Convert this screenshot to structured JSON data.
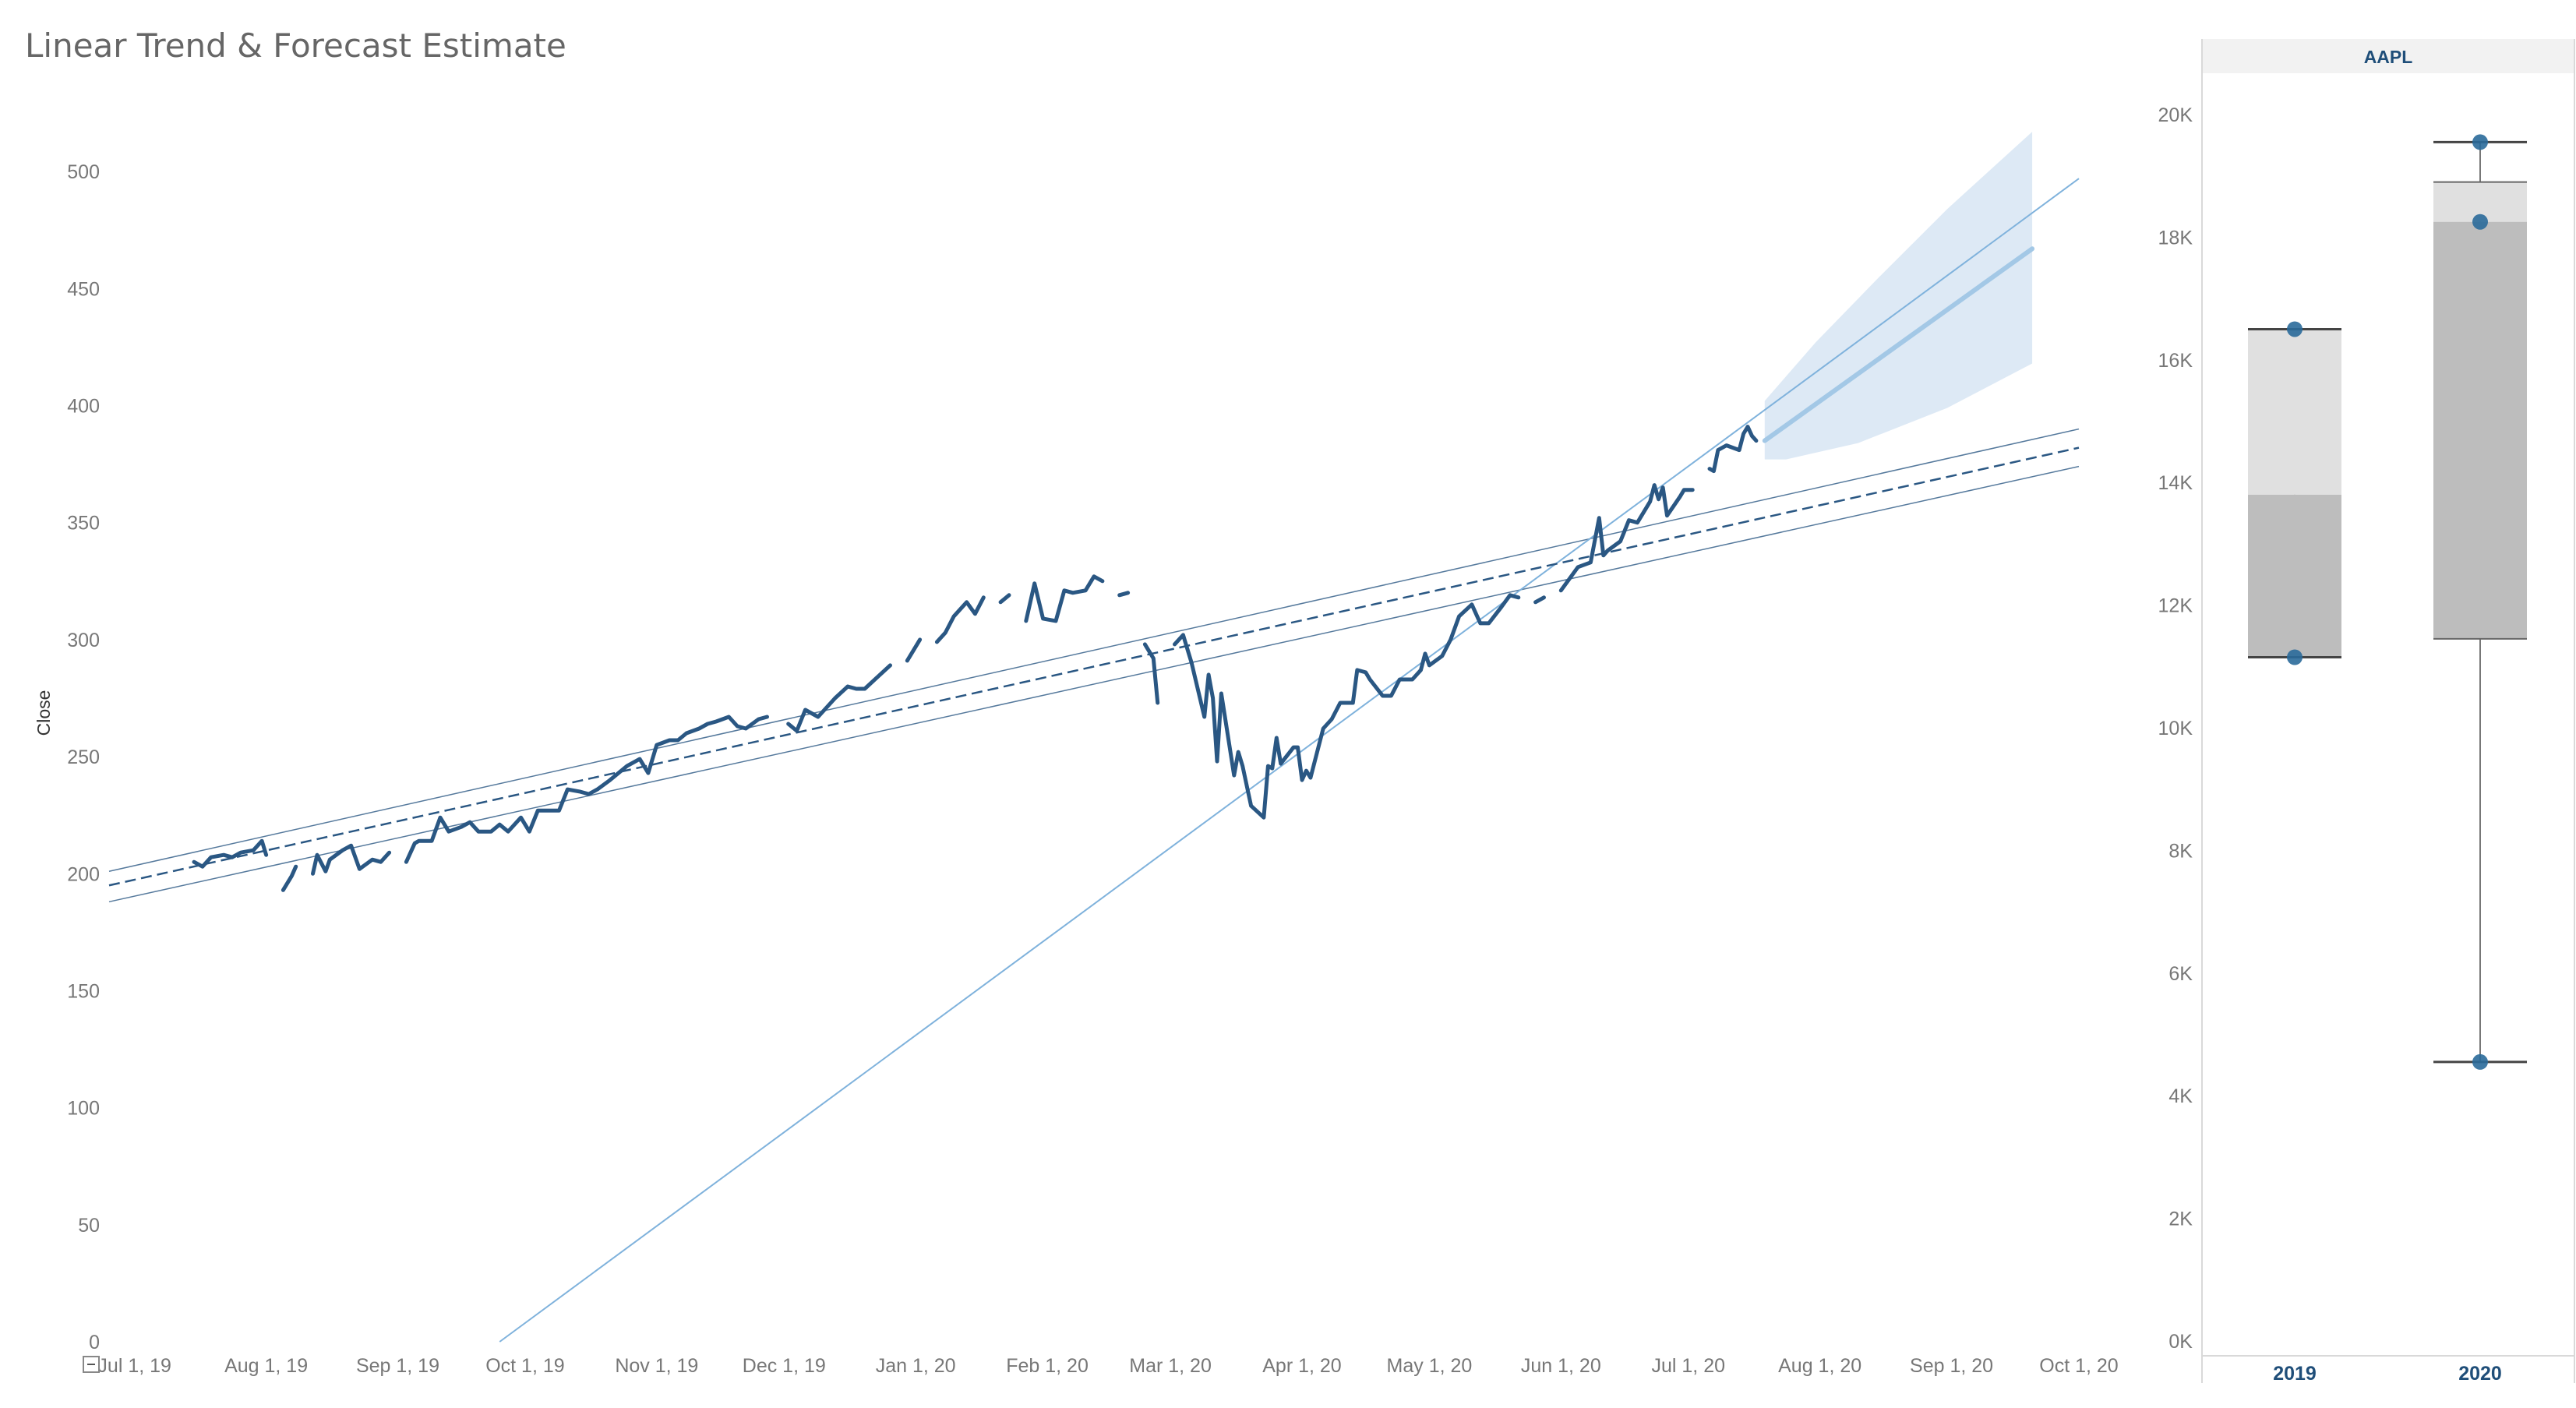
{
  "title": "Linear Trend & Forecast Estimate",
  "colors": {
    "price_line": "#2a5783",
    "trend_line": "#2a5783",
    "forecast_line": "#a3c8e6",
    "forecast_band": "#dde9f5",
    "box_light": "#e0e0e0",
    "box_dark": "#bdbdbd",
    "dot": "#2a6a9a",
    "header_bg": "#f2f2f2"
  },
  "chart_data": [
    {
      "type": "line",
      "ylabel": "Close",
      "ylim": [
        0,
        540
      ],
      "y_ticks": [
        0,
        50,
        100,
        150,
        200,
        250,
        300,
        350,
        400,
        450,
        500
      ],
      "x_ticks": [
        "Jul 1, 19",
        "Aug 1, 19",
        "Sep 1, 19",
        "Oct 1, 19",
        "Nov 1, 19",
        "Dec 1, 19",
        "Jan 1, 20",
        "Feb 1, 20",
        "Mar 1, 20",
        "Apr 1, 20",
        "May 1, 20",
        "Jun 1, 20",
        "Jul 1, 20",
        "Aug 1, 20",
        "Sep 1, 20",
        "Oct 1, 20"
      ],
      "x_tick_dates": [
        "2019-07-01",
        "2019-08-01",
        "2019-09-01",
        "2019-10-01",
        "2019-11-01",
        "2019-12-01",
        "2020-01-01",
        "2020-02-01",
        "2020-03-01",
        "2020-04-01",
        "2020-05-01",
        "2020-06-01",
        "2020-07-01",
        "2020-08-01",
        "2020-09-01",
        "2020-10-01"
      ],
      "xlim": [
        "2019-06-25",
        "2020-10-01"
      ],
      "series": [
        {
          "role": "close",
          "points": [
            [
              "2019-07-15",
              205
            ],
            [
              "2019-07-17",
              203
            ],
            [
              "2019-07-19",
              207
            ],
            [
              "2019-07-22",
              208
            ],
            [
              "2019-07-24",
              207
            ],
            [
              "2019-07-26",
              209
            ],
            [
              "2019-07-29",
              210
            ],
            [
              "2019-07-31",
              214
            ],
            [
              "2019-08-01",
              208
            ],
            [
              "2019-08-05",
              193
            ],
            [
              "2019-08-07",
              199
            ],
            [
              "2019-08-08",
              203
            ],
            [
              "2019-08-12",
              200
            ],
            [
              "2019-08-13",
              208
            ],
            [
              "2019-08-15",
              201
            ],
            [
              "2019-08-16",
              206
            ],
            [
              "2019-08-19",
              210
            ],
            [
              "2019-08-21",
              212
            ],
            [
              "2019-08-23",
              202
            ],
            [
              "2019-08-26",
              206
            ],
            [
              "2019-08-28",
              205
            ],
            [
              "2019-08-30",
              209
            ],
            [
              "2019-09-03",
              205
            ],
            [
              "2019-09-05",
              213
            ],
            [
              "2019-09-06",
              214
            ],
            [
              "2019-09-09",
              214
            ],
            [
              "2019-09-11",
              224
            ],
            [
              "2019-09-13",
              218
            ],
            [
              "2019-09-16",
              220
            ],
            [
              "2019-09-18",
              222
            ],
            [
              "2019-09-20",
              218
            ],
            [
              "2019-09-23",
              218
            ],
            [
              "2019-09-25",
              221
            ],
            [
              "2019-09-27",
              218
            ],
            [
              "2019-09-30",
              224
            ],
            [
              "2019-10-02",
              218
            ],
            [
              "2019-10-04",
              227
            ],
            [
              "2019-10-07",
              227
            ],
            [
              "2019-10-09",
              227
            ],
            [
              "2019-10-11",
              236
            ],
            [
              "2019-10-14",
              235
            ],
            [
              "2019-10-16",
              234
            ],
            [
              "2019-10-18",
              236
            ],
            [
              "2019-10-21",
              240
            ],
            [
              "2019-10-23",
              243
            ],
            [
              "2019-10-25",
              246
            ],
            [
              "2019-10-28",
              249
            ],
            [
              "2019-10-30",
              243
            ],
            [
              "2019-11-01",
              255
            ],
            [
              "2019-11-04",
              257
            ],
            [
              "2019-11-06",
              257
            ],
            [
              "2019-11-08",
              260
            ],
            [
              "2019-11-11",
              262
            ],
            [
              "2019-11-13",
              264
            ],
            [
              "2019-11-15",
              265
            ],
            [
              "2019-11-18",
              267
            ],
            [
              "2019-11-20",
              263
            ],
            [
              "2019-11-22",
              262
            ],
            [
              "2019-11-25",
              266
            ],
            [
              "2019-11-27",
              267
            ],
            [
              "2019-12-02",
              264
            ],
            [
              "2019-12-04",
              261
            ],
            [
              "2019-12-06",
              270
            ],
            [
              "2019-12-09",
              267
            ],
            [
              "2019-12-11",
              271
            ],
            [
              "2019-12-13",
              275
            ],
            [
              "2019-12-16",
              280
            ],
            [
              "2019-12-18",
              279
            ],
            [
              "2019-12-20",
              279
            ],
            [
              "2019-12-23",
              284
            ],
            [
              "2019-12-26",
              289
            ],
            [
              "2019-12-30",
              291
            ],
            [
              "2020-01-02",
              300
            ],
            [
              "2020-01-06",
              299
            ],
            [
              "2020-01-08",
              303
            ],
            [
              "2020-01-10",
              310
            ],
            [
              "2020-01-13",
              316
            ],
            [
              "2020-01-15",
              311
            ],
            [
              "2020-01-17",
              318
            ],
            [
              "2020-01-21",
              316
            ],
            [
              "2020-01-23",
              319
            ],
            [
              "2020-01-27",
              308
            ],
            [
              "2020-01-29",
              324
            ],
            [
              "2020-01-31",
              309
            ],
            [
              "2020-02-03",
              308
            ],
            [
              "2020-02-05",
              321
            ],
            [
              "2020-02-07",
              320
            ],
            [
              "2020-02-10",
              321
            ],
            [
              "2020-02-12",
              327
            ],
            [
              "2020-02-14",
              325
            ],
            [
              "2020-02-18",
              319
            ],
            [
              "2020-02-20",
              320
            ],
            [
              "2020-02-24",
              298
            ],
            [
              "2020-02-26",
              292
            ],
            [
              "2020-02-27",
              273
            ],
            [
              "2020-03-02",
              298
            ],
            [
              "2020-03-04",
              302
            ],
            [
              "2020-03-06",
              290
            ],
            [
              "2020-03-09",
              267
            ],
            [
              "2020-03-10",
              285
            ],
            [
              "2020-03-11",
              275
            ],
            [
              "2020-03-12",
              248
            ],
            [
              "2020-03-13",
              277
            ],
            [
              "2020-03-16",
              242
            ],
            [
              "2020-03-17",
              252
            ],
            [
              "2020-03-18",
              246
            ],
            [
              "2020-03-20",
              229
            ],
            [
              "2020-03-23",
              224
            ],
            [
              "2020-03-24",
              246
            ],
            [
              "2020-03-25",
              245
            ],
            [
              "2020-03-26",
              258
            ],
            [
              "2020-03-27",
              247
            ],
            [
              "2020-03-30",
              254
            ],
            [
              "2020-03-31",
              254
            ],
            [
              "2020-04-01",
              240
            ],
            [
              "2020-04-02",
              244
            ],
            [
              "2020-04-03",
              241
            ],
            [
              "2020-04-06",
              262
            ],
            [
              "2020-04-08",
              266
            ],
            [
              "2020-04-10",
              273
            ],
            [
              "2020-04-13",
              273
            ],
            [
              "2020-04-14",
              287
            ],
            [
              "2020-04-16",
              286
            ],
            [
              "2020-04-17",
              283
            ],
            [
              "2020-04-20",
              276
            ],
            [
              "2020-04-22",
              276
            ],
            [
              "2020-04-24",
              283
            ],
            [
              "2020-04-27",
              283
            ],
            [
              "2020-04-29",
              287
            ],
            [
              "2020-04-30",
              294
            ],
            [
              "2020-05-01",
              289
            ],
            [
              "2020-05-04",
              293
            ],
            [
              "2020-05-06",
              300
            ],
            [
              "2020-05-08",
              310
            ],
            [
              "2020-05-11",
              315
            ],
            [
              "2020-05-13",
              307
            ],
            [
              "2020-05-15",
              307
            ],
            [
              "2020-05-18",
              314
            ],
            [
              "2020-05-20",
              319
            ],
            [
              "2020-05-22",
              318
            ],
            [
              "2020-05-26",
              316
            ],
            [
              "2020-05-28",
              318
            ],
            [
              "2020-06-01",
              321
            ],
            [
              "2020-06-03",
              326
            ],
            [
              "2020-06-05",
              331
            ],
            [
              "2020-06-08",
              333
            ],
            [
              "2020-06-10",
              352
            ],
            [
              "2020-06-11",
              336
            ],
            [
              "2020-06-12",
              338
            ],
            [
              "2020-06-15",
              342
            ],
            [
              "2020-06-17",
              351
            ],
            [
              "2020-06-19",
              350
            ],
            [
              "2020-06-22",
              359
            ],
            [
              "2020-06-23",
              366
            ],
            [
              "2020-06-24",
              360
            ],
            [
              "2020-06-25",
              365
            ],
            [
              "2020-06-26",
              353
            ],
            [
              "2020-06-29",
              361
            ],
            [
              "2020-06-30",
              364
            ],
            [
              "2020-07-01",
              364
            ],
            [
              "2020-07-02",
              364
            ],
            [
              "2020-07-06",
              373
            ],
            [
              "2020-07-07",
              372
            ],
            [
              "2020-07-08",
              381
            ],
            [
              "2020-07-10",
              383
            ],
            [
              "2020-07-13",
              381
            ],
            [
              "2020-07-14",
              388
            ],
            [
              "2020-07-15",
              391
            ],
            [
              "2020-07-16",
              387
            ],
            [
              "2020-07-17",
              385
            ]
          ]
        },
        {
          "role": "linear-trend",
          "points": [
            [
              "2019-06-25",
              195
            ],
            [
              "2020-10-01",
              382
            ]
          ]
        },
        {
          "role": "trend-band-upper",
          "points": [
            [
              "2019-06-25",
              201
            ],
            [
              "2020-10-01",
              390
            ]
          ]
        },
        {
          "role": "trend-band-lower",
          "points": [
            [
              "2019-06-25",
              188
            ],
            [
              "2020-10-01",
              374
            ]
          ]
        },
        {
          "role": "steep-trend",
          "points": [
            [
              "2019-09-25",
              0
            ],
            [
              "2020-10-01",
              497
            ]
          ]
        },
        {
          "role": "forecast",
          "points": [
            [
              "2020-07-19",
              385
            ],
            [
              "2020-09-20",
              467
            ]
          ]
        },
        {
          "role": "forecast-upper",
          "points": [
            [
              "2020-07-19",
              402
            ],
            [
              "2020-07-31",
              427
            ],
            [
              "2020-08-15",
              455
            ],
            [
              "2020-08-31",
              484
            ],
            [
              "2020-09-20",
              517
            ]
          ]
        },
        {
          "role": "forecast-lower",
          "points": [
            [
              "2020-07-19",
              377
            ],
            [
              "2020-07-24",
              377
            ],
            [
              "2020-08-10",
              384
            ],
            [
              "2020-08-31",
              399
            ],
            [
              "2020-09-20",
              418
            ]
          ]
        }
      ]
    },
    {
      "type": "box",
      "header": "AAPL",
      "ylim": [
        0,
        20000
      ],
      "y_ticks": [
        "0K",
        "2K",
        "4K",
        "6K",
        "8K",
        "10K",
        "12K",
        "14K",
        "16K",
        "18K",
        "20K"
      ],
      "categories": [
        "2019",
        "2020"
      ],
      "boxes": [
        {
          "category": "2019",
          "min": 11150,
          "q1": 11150,
          "median": 13800,
          "q3": 16500,
          "max": 16500,
          "points": [
            16500,
            11150
          ]
        },
        {
          "category": "2020",
          "min": 4550,
          "q1": 11450,
          "median": 18250,
          "q3": 18900,
          "max": 19550,
          "points": [
            19550,
            18250,
            4550
          ]
        }
      ]
    }
  ]
}
